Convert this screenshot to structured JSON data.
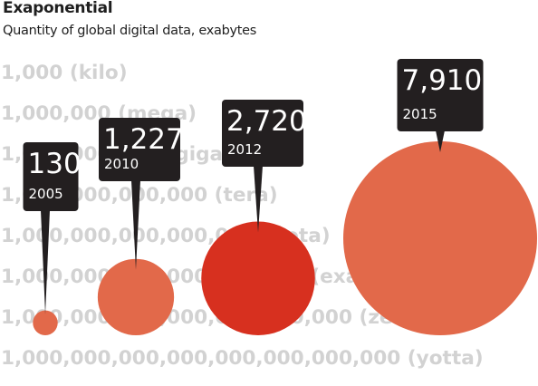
{
  "header": {
    "title": "Exaponential",
    "subtitle": "Quantity of global digital data, exabytes"
  },
  "chart_data": {
    "type": "bubble",
    "title": "Exaponential",
    "subtitle": "Quantity of global digital data, exabytes",
    "x": [
      "2005",
      "2010",
      "2012",
      "2015"
    ],
    "values": [
      130,
      1227,
      2720,
      7910
    ],
    "scale_labels": [
      "1,000 (kilo)",
      "1,000,000 (mega)",
      "1,000,000,000 (giga)",
      "1,000,000,000,000 (tera)",
      "1,000,000,000,000,000 (peta)",
      "1,000,000,000,000,000,000 (exa)",
      "1,000,000,000,000,000,000,000 (zetta)",
      "1,000,000,000,000,000,000,000,000 (yotta)"
    ],
    "value_labels": [
      "130",
      "1,227",
      "2,720",
      "7,910"
    ],
    "colors": {
      "2005": "#e2694a",
      "2010": "#e2694a",
      "2012": "#d7301f",
      "2015": "#e2694a",
      "callout": "#231f20",
      "scale_text": "#d2d2d2"
    }
  }
}
